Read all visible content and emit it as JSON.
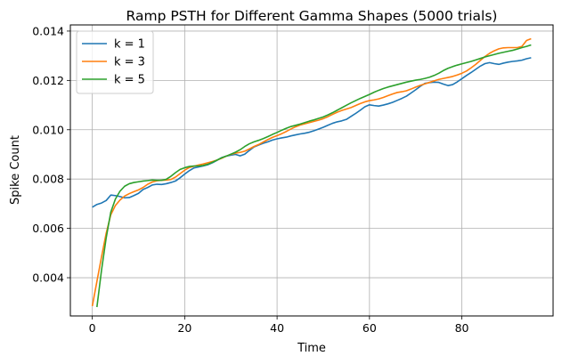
{
  "chart_data": {
    "type": "line",
    "title": "Ramp PSTH for Different Gamma Shapes (5000 trials)",
    "xlabel": "Time",
    "ylabel": "Spike Count",
    "xlim": [
      -4.75,
      99.75
    ],
    "ylim": [
      0.00245,
      0.01425
    ],
    "xticks": [
      0,
      20,
      40,
      60,
      80
    ],
    "xtick_labels": [
      "0",
      "20",
      "40",
      "60",
      "80"
    ],
    "yticks": [
      0.004,
      0.006,
      0.008,
      0.01,
      0.012,
      0.014
    ],
    "ytick_labels": [
      "0.004",
      "0.006",
      "0.008",
      "0.010",
      "0.012",
      "0.014"
    ],
    "grid": true,
    "legend": "top-left",
    "x": [
      0,
      1,
      2,
      3,
      4,
      5,
      6,
      7,
      8,
      9,
      10,
      11,
      12,
      13,
      14,
      15,
      16,
      17,
      18,
      19,
      20,
      21,
      22,
      23,
      24,
      25,
      26,
      27,
      28,
      29,
      30,
      31,
      32,
      33,
      34,
      35,
      36,
      37,
      38,
      39,
      40,
      41,
      42,
      43,
      44,
      45,
      46,
      47,
      48,
      49,
      50,
      51,
      52,
      53,
      54,
      55,
      56,
      57,
      58,
      59,
      60,
      61,
      62,
      63,
      64,
      65,
      66,
      67,
      68,
      69,
      70,
      71,
      72,
      73,
      74,
      75,
      76,
      77,
      78,
      79,
      80,
      81,
      82,
      83,
      84,
      85,
      86,
      87,
      88,
      89,
      90,
      91,
      92,
      93,
      94,
      95
    ],
    "series": [
      {
        "name": "k = 1",
        "color": "#1f77b4",
        "values": [
          0.00686,
          0.00697,
          0.00703,
          0.00713,
          0.00735,
          0.00733,
          0.00729,
          0.00724,
          0.00725,
          0.00733,
          0.00742,
          0.00758,
          0.00766,
          0.00776,
          0.00779,
          0.00778,
          0.00781,
          0.00786,
          0.00792,
          0.00805,
          0.0082,
          0.00834,
          0.00845,
          0.00849,
          0.00853,
          0.00858,
          0.00866,
          0.00876,
          0.00887,
          0.00893,
          0.00897,
          0.009,
          0.00894,
          0.00901,
          0.00916,
          0.0093,
          0.00938,
          0.00945,
          0.00951,
          0.00958,
          0.00963,
          0.00967,
          0.0097,
          0.00975,
          0.00979,
          0.00983,
          0.00986,
          0.0099,
          0.00996,
          0.01003,
          0.0101,
          0.01018,
          0.01026,
          0.01032,
          0.01036,
          0.01042,
          0.01054,
          0.01066,
          0.01079,
          0.01093,
          0.01101,
          0.01098,
          0.01096,
          0.011,
          0.01105,
          0.01111,
          0.01119,
          0.01127,
          0.01136,
          0.01149,
          0.01162,
          0.01176,
          0.01188,
          0.01191,
          0.01193,
          0.01192,
          0.01185,
          0.01179,
          0.01183,
          0.01194,
          0.01207,
          0.0122,
          0.01232,
          0.01245,
          0.01258,
          0.01268,
          0.01272,
          0.01268,
          0.01265,
          0.0127,
          0.01274,
          0.01277,
          0.01279,
          0.01282,
          0.01288,
          0.01292
        ]
      },
      {
        "name": "k = 3",
        "color": "#ff7f0e",
        "values": [
          0.00285,
          0.00385,
          0.00485,
          0.0058,
          0.00655,
          0.00693,
          0.00715,
          0.00731,
          0.00741,
          0.00749,
          0.00756,
          0.00766,
          0.00779,
          0.00788,
          0.00793,
          0.00795,
          0.00796,
          0.00798,
          0.00808,
          0.00822,
          0.00836,
          0.00847,
          0.00852,
          0.00857,
          0.00861,
          0.00866,
          0.00871,
          0.00877,
          0.00884,
          0.00893,
          0.009,
          0.00905,
          0.00908,
          0.00913,
          0.00922,
          0.00932,
          0.0094,
          0.0095,
          0.0096,
          0.00969,
          0.00976,
          0.00984,
          0.00993,
          0.01003,
          0.01012,
          0.01019,
          0.01024,
          0.01029,
          0.01034,
          0.01039,
          0.01045,
          0.01053,
          0.01062,
          0.01071,
          0.01078,
          0.01084,
          0.0109,
          0.01098,
          0.01106,
          0.01113,
          0.01118,
          0.01121,
          0.01125,
          0.01131,
          0.01138,
          0.01145,
          0.01151,
          0.01154,
          0.01158,
          0.01165,
          0.01173,
          0.0118,
          0.01186,
          0.01192,
          0.01198,
          0.01204,
          0.01208,
          0.01212,
          0.01216,
          0.01222,
          0.01229,
          0.01238,
          0.01251,
          0.01265,
          0.01281,
          0.01297,
          0.0131,
          0.0132,
          0.01328,
          0.01332,
          0.01333,
          0.01333,
          0.01333,
          0.01338,
          0.01362,
          0.01369
        ]
      },
      {
        "name": "k = 5",
        "color": "#2ca02c",
        "values": [
          null,
          0.00281,
          0.00431,
          0.00561,
          0.00666,
          0.00719,
          0.00751,
          0.00771,
          0.00781,
          0.00786,
          0.00789,
          0.00792,
          0.00794,
          0.00796,
          0.00795,
          0.00795,
          0.00799,
          0.00811,
          0.00826,
          0.00839,
          0.00846,
          0.00851,
          0.00853,
          0.00853,
          0.00855,
          0.0086,
          0.00868,
          0.00877,
          0.00886,
          0.00893,
          0.00901,
          0.00909,
          0.00919,
          0.00932,
          0.00943,
          0.00951,
          0.00957,
          0.00964,
          0.00972,
          0.00981,
          0.00989,
          0.00998,
          0.01006,
          0.01013,
          0.01018,
          0.01023,
          0.01029,
          0.01035,
          0.0104,
          0.01046,
          0.01052,
          0.0106,
          0.01069,
          0.01079,
          0.01089,
          0.01099,
          0.01109,
          0.01118,
          0.01127,
          0.01135,
          0.01143,
          0.01152,
          0.0116,
          0.01167,
          0.01173,
          0.01178,
          0.01183,
          0.01188,
          0.01193,
          0.01197,
          0.01201,
          0.01204,
          0.01208,
          0.01213,
          0.0122,
          0.01229,
          0.0124,
          0.01249,
          0.01256,
          0.01262,
          0.01267,
          0.01272,
          0.01277,
          0.01283,
          0.01289,
          0.01295,
          0.013,
          0.01305,
          0.0131,
          0.01314,
          0.01318,
          0.01322,
          0.01327,
          0.01333,
          0.01338,
          0.01344
        ]
      }
    ]
  }
}
